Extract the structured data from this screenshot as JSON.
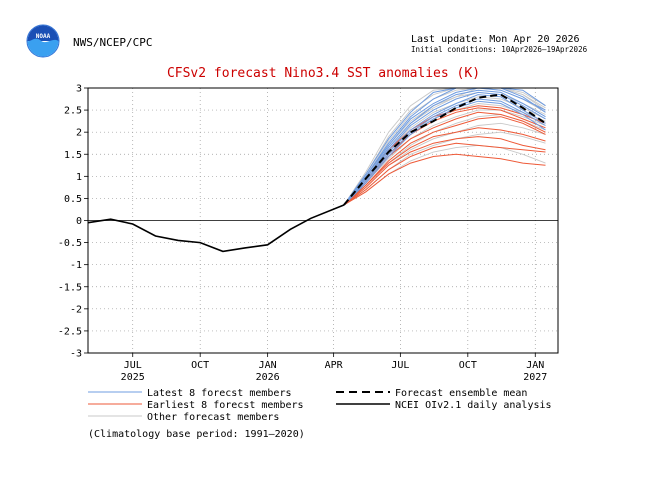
{
  "header": {
    "logo_text": "NOAA",
    "org": "NWS/NCEP/CPC",
    "last_update": "Last update: Mon Apr 20 2026",
    "initial_conditions": "Initial conditions: 10Apr2026–19Apr2026"
  },
  "colors": {
    "latest": "#6f9ce0",
    "earliest": "#ee5a38",
    "other": "#c8c8c8",
    "mean": "#000000",
    "analysis": "#000000",
    "title": "#cc0000",
    "noaa_blue": "#1a4fb5"
  },
  "chart_data": {
    "type": "line",
    "title": "CFSv2 forecast Nino3.4 SST anomalies (K)",
    "ylim": [
      -3,
      3
    ],
    "yticks": [
      "-3",
      "-2.5",
      "-2",
      "-1.5",
      "-1",
      "-0.5",
      "0",
      "0.5",
      "1",
      "1.5",
      "2",
      "2.5",
      "3"
    ],
    "xlim": [
      "2025-05-01",
      "2027-02-01"
    ],
    "xtick_labels": [
      {
        "date": "2025-07-01",
        "month": "JUL",
        "year": "2025"
      },
      {
        "date": "2025-10-01",
        "month": "OCT",
        "year": ""
      },
      {
        "date": "2026-01-01",
        "month": "JAN",
        "year": "2026"
      },
      {
        "date": "2026-04-01",
        "month": "APR",
        "year": ""
      },
      {
        "date": "2026-07-01",
        "month": "JUL",
        "year": ""
      },
      {
        "date": "2026-10-01",
        "month": "OCT",
        "year": ""
      },
      {
        "date": "2027-01-01",
        "month": "JAN",
        "year": "2027"
      }
    ],
    "grid": true,
    "forecast_dates": [
      "2026-04-15",
      "2026-05-15",
      "2026-06-15",
      "2026-07-15",
      "2026-08-15",
      "2026-09-15",
      "2026-10-15",
      "2026-11-15",
      "2026-12-15",
      "2027-01-15"
    ],
    "analysis": {
      "name": "NCEI OIv2.1 daily analysis",
      "x": [
        "2025-05-01",
        "2025-06-01",
        "2025-07-01",
        "2025-08-01",
        "2025-09-01",
        "2025-10-01",
        "2025-11-01",
        "2025-12-01",
        "2026-01-01",
        "2026-02-01",
        "2026-03-01",
        "2026-04-15"
      ],
      "y": [
        -0.05,
        0.03,
        -0.08,
        -0.35,
        -0.45,
        -0.5,
        -0.7,
        -0.62,
        -0.55,
        -0.2,
        0.05,
        0.35
      ]
    },
    "ensemble_mean": {
      "name": "Forecast ensemble mean",
      "y": [
        0.35,
        0.95,
        1.55,
        2.0,
        2.25,
        2.55,
        2.78,
        2.85,
        2.55,
        2.2
      ]
    },
    "latest_members": [
      [
        0.35,
        1.05,
        1.85,
        2.45,
        2.9,
        3.1,
        3.2,
        3.15,
        2.95,
        2.6
      ],
      [
        0.35,
        1.0,
        1.75,
        2.35,
        2.75,
        3.0,
        3.1,
        3.0,
        2.8,
        2.45
      ],
      [
        0.35,
        1.0,
        1.7,
        2.3,
        2.65,
        2.9,
        3.05,
        2.95,
        2.75,
        2.5
      ],
      [
        0.35,
        0.95,
        1.65,
        2.2,
        2.6,
        2.85,
        2.95,
        2.9,
        2.65,
        2.35
      ],
      [
        0.35,
        0.95,
        1.6,
        2.15,
        2.5,
        2.75,
        2.9,
        2.85,
        2.6,
        2.3
      ],
      [
        0.35,
        0.9,
        1.55,
        2.05,
        2.4,
        2.65,
        2.85,
        2.8,
        2.5,
        2.2
      ],
      [
        0.35,
        0.9,
        1.5,
        2.0,
        2.35,
        2.6,
        2.75,
        2.7,
        2.45,
        2.15
      ],
      [
        0.35,
        0.85,
        1.45,
        1.95,
        2.3,
        2.55,
        2.7,
        2.65,
        2.4,
        2.05
      ]
    ],
    "earliest_members": [
      [
        0.35,
        0.95,
        1.6,
        2.05,
        2.35,
        2.5,
        2.6,
        2.55,
        2.4,
        2.2
      ],
      [
        0.35,
        0.9,
        1.5,
        1.95,
        2.25,
        2.45,
        2.55,
        2.5,
        2.3,
        2.1
      ],
      [
        0.35,
        0.85,
        1.45,
        1.85,
        2.1,
        2.3,
        2.45,
        2.4,
        2.25,
        2.0
      ],
      [
        0.35,
        0.8,
        1.35,
        1.75,
        2.0,
        2.15,
        2.3,
        2.35,
        2.2,
        1.95
      ],
      [
        0.35,
        0.8,
        1.3,
        1.65,
        1.9,
        2.0,
        2.1,
        2.05,
        1.95,
        1.8
      ],
      [
        0.35,
        0.75,
        1.25,
        1.55,
        1.75,
        1.85,
        1.9,
        1.85,
        1.7,
        1.6
      ],
      [
        0.35,
        0.7,
        1.15,
        1.45,
        1.65,
        1.75,
        1.7,
        1.65,
        1.6,
        1.55
      ],
      [
        0.35,
        0.65,
        1.05,
        1.3,
        1.45,
        1.5,
        1.45,
        1.4,
        1.3,
        1.25
      ]
    ],
    "other_members": [
      [
        0.35,
        1.1,
        2.0,
        2.6,
        2.95,
        3.1,
        3.15,
        3.1,
        2.9,
        2.6
      ],
      [
        0.35,
        1.05,
        1.9,
        2.5,
        2.85,
        3.05,
        3.1,
        3.05,
        2.85,
        2.55
      ],
      [
        0.35,
        1.0,
        1.8,
        2.4,
        2.75,
        2.95,
        3.05,
        2.95,
        2.75,
        2.45
      ],
      [
        0.35,
        0.95,
        1.7,
        2.25,
        2.6,
        2.8,
        2.9,
        2.85,
        2.65,
        2.4
      ],
      [
        0.35,
        0.9,
        1.6,
        2.1,
        2.45,
        2.65,
        2.8,
        2.75,
        2.55,
        2.3
      ],
      [
        0.35,
        0.85,
        1.5,
        2.0,
        2.3,
        2.5,
        2.65,
        2.6,
        2.45,
        2.25
      ],
      [
        0.35,
        0.85,
        1.4,
        1.85,
        2.15,
        2.35,
        2.5,
        2.5,
        2.35,
        2.15
      ],
      [
        0.35,
        0.8,
        1.3,
        1.7,
        2.0,
        2.2,
        2.35,
        2.4,
        2.25,
        2.05
      ],
      [
        0.35,
        0.75,
        1.25,
        1.6,
        1.85,
        2.0,
        2.15,
        2.2,
        2.1,
        1.95
      ],
      [
        0.35,
        0.7,
        1.15,
        1.5,
        1.7,
        1.85,
        1.95,
        2.0,
        1.9,
        1.75
      ],
      [
        0.35,
        0.65,
        1.05,
        1.35,
        1.55,
        1.65,
        1.7,
        1.65,
        1.5,
        1.3
      ],
      [
        0.35,
        0.95,
        1.65,
        2.2,
        2.55,
        2.8,
        3.0,
        3.05,
        2.85,
        2.5
      ]
    ],
    "legend": [
      {
        "label": "Latest 8 forecst members",
        "style": "latest"
      },
      {
        "label": "Earliest 8 forecst members",
        "style": "earliest"
      },
      {
        "label": "Other forecast members",
        "style": "other"
      },
      {
        "label": "Forecast ensemble mean",
        "style": "mean"
      },
      {
        "label": "NCEI OIv2.1 daily analysis",
        "style": "analysis"
      }
    ],
    "climatology_note": "(Climatology base period: 1991—2020)"
  }
}
